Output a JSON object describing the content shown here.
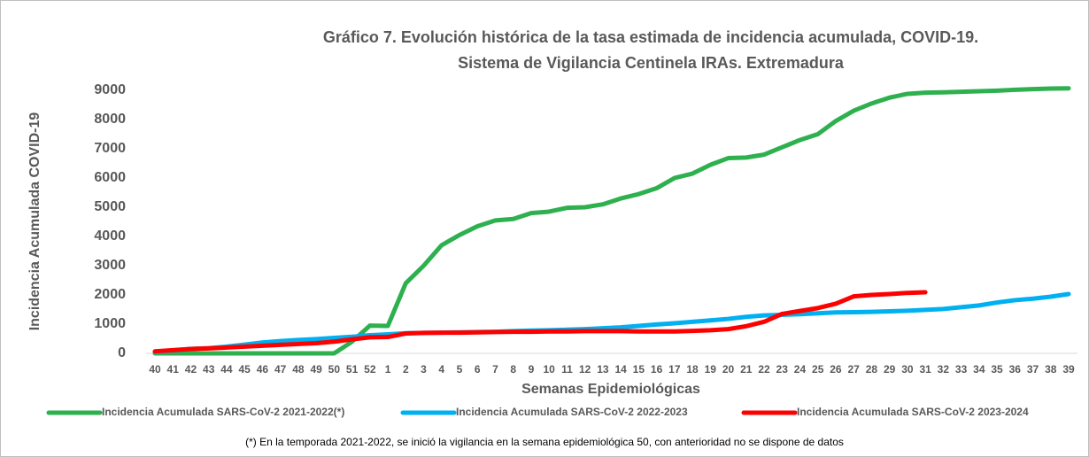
{
  "chart_data": {
    "type": "line",
    "title": "Gráfico 7. Evolución histórica de la tasa estimada de incidencia acumulada, COVID-19.",
    "subtitle": "Sistema de Vigilancia Centinela IRAs. Extremadura",
    "y_label": "Incidencia Acumulada COVID-19",
    "x_label": "Semanas Epidemiológicas",
    "note": "(*) En la temporada 2021-2022, se inició la vigilancia en la semana epidemiológica 50, con anterioridad no se dispone de datos",
    "categories": [
      "40",
      "41",
      "42",
      "43",
      "44",
      "45",
      "46",
      "47",
      "48",
      "49",
      "50",
      "51",
      "52",
      "1",
      "2",
      "3",
      "4",
      "5",
      "6",
      "7",
      "8",
      "9",
      "10",
      "11",
      "12",
      "13",
      "14",
      "15",
      "16",
      "17",
      "18",
      "19",
      "20",
      "21",
      "22",
      "23",
      "24",
      "25",
      "26",
      "27",
      "28",
      "29",
      "30",
      "31",
      "32",
      "33",
      "34",
      "35",
      "36",
      "37",
      "38",
      "39"
    ],
    "series": [
      {
        "name": "Incidencia Acumulada SARS-CoV-2 2021-2022(*)",
        "color": "#2eb04f",
        "values": [
          0,
          0,
          0,
          0,
          0,
          0,
          0,
          0,
          0,
          0,
          0,
          400,
          950,
          940,
          2400,
          3000,
          3700,
          4050,
          4350,
          4550,
          4600,
          4800,
          4850,
          4980,
          5000,
          5100,
          5300,
          5450,
          5650,
          6000,
          6150,
          6450,
          6680,
          6700,
          6800,
          7050,
          7300,
          7500,
          7950,
          8300,
          8550,
          8750,
          8880,
          8920,
          8930,
          8950,
          8970,
          8990,
          9020,
          9040,
          9060,
          9070
        ]
      },
      {
        "name": "Incidencia Acumulada SARS-CoV-2 2022-2023",
        "color": "#00b0f0",
        "values": [
          50,
          100,
          150,
          180,
          230,
          300,
          370,
          420,
          460,
          490,
          530,
          570,
          620,
          650,
          690,
          700,
          710,
          720,
          730,
          740,
          760,
          780,
          790,
          810,
          830,
          860,
          890,
          940,
          990,
          1030,
          1080,
          1130,
          1180,
          1250,
          1300,
          1320,
          1340,
          1370,
          1400,
          1410,
          1420,
          1440,
          1460,
          1490,
          1520,
          1580,
          1640,
          1740,
          1820,
          1870,
          1940,
          2030
        ]
      },
      {
        "name": "Incidencia Acumulada SARS-CoV-2 2023-2024",
        "color": "#ff0000",
        "values": [
          70,
          110,
          150,
          170,
          200,
          230,
          260,
          290,
          320,
          350,
          400,
          480,
          550,
          560,
          680,
          700,
          710,
          710,
          720,
          730,
          740,
          740,
          750,
          750,
          760,
          760,
          760,
          750,
          750,
          750,
          770,
          790,
          830,
          930,
          1080,
          1350,
          1450,
          1550,
          1700,
          1950,
          2000,
          2030,
          2070,
          2090,
          null,
          null,
          null,
          null,
          null,
          null,
          null,
          null
        ]
      }
    ],
    "ylim": [
      0,
      9000
    ],
    "yticks": [
      0,
      1000,
      2000,
      3000,
      4000,
      5000,
      6000,
      7000,
      8000,
      9000
    ],
    "grid": false
  }
}
